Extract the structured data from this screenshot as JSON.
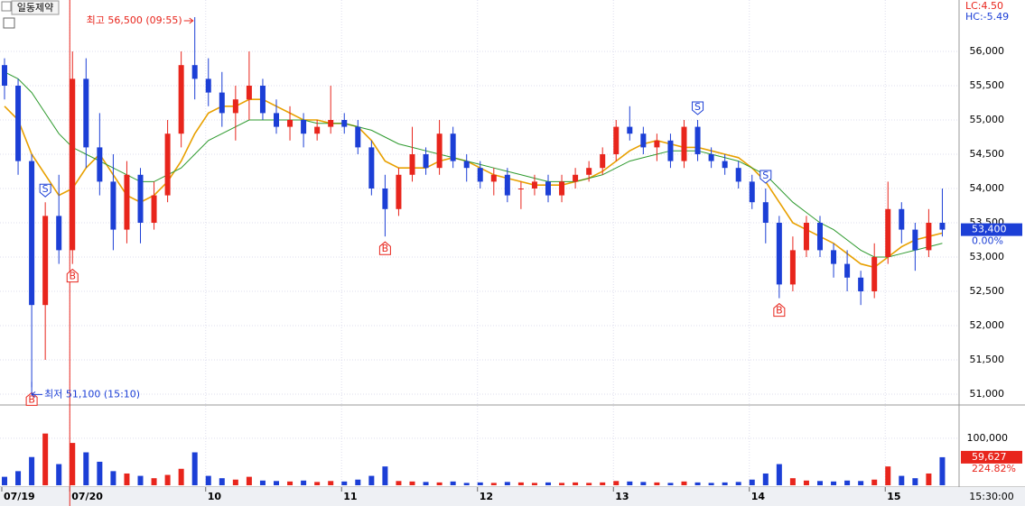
{
  "chart_data": {
    "type": "candlestick",
    "title": "일동제약",
    "lc_label": "LC:4.50",
    "hc_label": "HC:-5.49",
    "high_annotation": "최고 56,500 (09:55)",
    "low_annotation": "최저 51,100 (15:10)",
    "last_price": {
      "value": 53400,
      "label": "53,400"
    },
    "change_label": "0.00%",
    "last_volume": {
      "value": 59627,
      "label": "59,627"
    },
    "volume_ratio_label": "224.82%",
    "end_time": "15:30:00",
    "categories": [
      "07/19",
      null,
      null,
      null,
      null,
      "07/20",
      null,
      null,
      null,
      null,
      null,
      null,
      null,
      null,
      null,
      "10",
      null,
      null,
      null,
      null,
      null,
      null,
      null,
      null,
      null,
      "11",
      null,
      null,
      null,
      null,
      null,
      null,
      null,
      null,
      null,
      "12",
      null,
      null,
      null,
      null,
      null,
      null,
      null,
      null,
      null,
      "13",
      null,
      null,
      null,
      null,
      null,
      null,
      null,
      null,
      null,
      "14",
      null,
      null,
      null,
      null,
      null,
      null,
      null,
      null,
      null,
      "15",
      null,
      null,
      null,
      null
    ],
    "open": [
      55800,
      55500,
      54400,
      52300,
      53600,
      53100,
      55600,
      54600,
      54100,
      53400,
      54200,
      53500,
      53900,
      54800,
      55800,
      55600,
      55400,
      55100,
      55300,
      55500,
      55100,
      54900,
      55000,
      54800,
      54900,
      55000,
      54900,
      54600,
      54000,
      53700,
      54200,
      54500,
      54300,
      54800,
      54400,
      54300,
      54100,
      54200,
      54000,
      54000,
      54100,
      53900,
      54100,
      54200,
      54300,
      54500,
      54900,
      54800,
      54600,
      54700,
      54400,
      54900,
      54500,
      54400,
      54300,
      54100,
      53800,
      53500,
      52600,
      53100,
      53500,
      53100,
      52900,
      52700,
      52500,
      53000,
      53700,
      53400,
      53100,
      53500
    ],
    "high": [
      55900,
      55600,
      54500,
      53800,
      54200,
      56000,
      55900,
      55100,
      54500,
      54400,
      54300,
      54100,
      55000,
      56000,
      56500,
      55900,
      55700,
      55500,
      56000,
      55600,
      55300,
      55200,
      55100,
      55000,
      55500,
      55100,
      55000,
      54700,
      54200,
      54300,
      54900,
      54600,
      55000,
      54900,
      54500,
      54400,
      54300,
      54300,
      54100,
      54200,
      54200,
      54200,
      54300,
      54400,
      54600,
      55000,
      55200,
      54900,
      54800,
      54800,
      55000,
      55000,
      54600,
      54500,
      54400,
      54200,
      54000,
      53600,
      53300,
      53600,
      53600,
      53200,
      53100,
      52800,
      53200,
      54100,
      53800,
      53500,
      53700,
      54000
    ],
    "low": [
      55300,
      54200,
      51100,
      51500,
      52900,
      52900,
      54300,
      53900,
      53100,
      53200,
      53200,
      53400,
      53800,
      54600,
      55300,
      55200,
      54900,
      54700,
      55000,
      55000,
      54800,
      54700,
      54600,
      54700,
      54800,
      54800,
      54500,
      53900,
      53300,
      53600,
      54100,
      54200,
      54200,
      54300,
      54100,
      54000,
      53900,
      53800,
      53700,
      53900,
      53800,
      53800,
      54000,
      54100,
      54200,
      54400,
      54700,
      54500,
      54400,
      54300,
      54300,
      54400,
      54300,
      54200,
      54000,
      53700,
      53200,
      52400,
      52500,
      53000,
      53000,
      52700,
      52500,
      52300,
      52400,
      52900,
      53200,
      52800,
      53000,
      53300
    ],
    "close": [
      55500,
      54400,
      52300,
      53600,
      53100,
      55600,
      54600,
      54100,
      53400,
      54200,
      53500,
      53900,
      54800,
      55800,
      55600,
      55400,
      55100,
      55300,
      55500,
      55100,
      54900,
      55000,
      54800,
      54900,
      55000,
      54900,
      54600,
      54000,
      53700,
      54200,
      54500,
      54300,
      54800,
      54400,
      54300,
      54100,
      54200,
      53900,
      54000,
      54100,
      53900,
      54100,
      54200,
      54300,
      54500,
      54900,
      54800,
      54600,
      54700,
      54400,
      54900,
      54500,
      54400,
      54300,
      54100,
      53800,
      53500,
      52600,
      53100,
      53500,
      53100,
      52900,
      52700,
      52500,
      53000,
      53700,
      53400,
      53100,
      53500,
      53400
    ],
    "volume": [
      18000,
      30000,
      60000,
      110000,
      45000,
      90000,
      70000,
      50000,
      30000,
      25000,
      20000,
      15000,
      22000,
      35000,
      70000,
      20000,
      15000,
      12000,
      18000,
      10000,
      9000,
      8000,
      10000,
      7000,
      9000,
      8000,
      12000,
      20000,
      40000,
      9000,
      8000,
      7000,
      6000,
      8000,
      5000,
      6000,
      5000,
      7000,
      6000,
      5000,
      6000,
      5000,
      6000,
      5000,
      6000,
      9000,
      8000,
      7000,
      6000,
      5000,
      8000,
      6000,
      5000,
      6000,
      7000,
      12000,
      25000,
      45000,
      15000,
      10000,
      9000,
      8000,
      10000,
      9000,
      12000,
      40000,
      20000,
      15000,
      25000,
      59627
    ],
    "signals": [
      null,
      null,
      "B",
      "S",
      null,
      "B",
      null,
      null,
      null,
      null,
      null,
      null,
      null,
      null,
      null,
      null,
      null,
      null,
      null,
      null,
      null,
      null,
      null,
      null,
      null,
      null,
      null,
      null,
      "B",
      null,
      null,
      null,
      null,
      null,
      null,
      null,
      null,
      null,
      null,
      null,
      null,
      null,
      null,
      null,
      null,
      null,
      null,
      null,
      null,
      null,
      null,
      "S",
      null,
      null,
      null,
      null,
      "S",
      "B",
      null,
      null,
      null,
      null,
      null,
      null,
      null,
      null,
      null,
      null,
      null,
      null
    ],
    "series": [
      {
        "name": "MA1",
        "color": "#e8a000",
        "values": [
          55200,
          55000,
          54500,
          54200,
          53900,
          54000,
          54300,
          54500,
          54200,
          53900,
          53800,
          53900,
          54100,
          54400,
          54800,
          55100,
          55200,
          55200,
          55300,
          55300,
          55200,
          55100,
          55000,
          55000,
          54950,
          54950,
          54900,
          54700,
          54400,
          54300,
          54300,
          54300,
          54400,
          54450,
          54400,
          54300,
          54200,
          54150,
          54100,
          54050,
          54050,
          54050,
          54100,
          54150,
          54250,
          54400,
          54550,
          54650,
          54700,
          54650,
          54600,
          54600,
          54550,
          54500,
          54450,
          54300,
          54100,
          53800,
          53500,
          53400,
          53300,
          53200,
          53050,
          52900,
          52850,
          53000,
          53150,
          53250,
          53300,
          53350
        ]
      },
      {
        "name": "MA2",
        "color": "#2e9a2e",
        "values": [
          55700,
          55600,
          55400,
          55100,
          54800,
          54600,
          54500,
          54400,
          54300,
          54200,
          54100,
          54100,
          54200,
          54300,
          54500,
          54700,
          54800,
          54900,
          55000,
          55000,
          55000,
          55000,
          55000,
          54950,
          54950,
          54950,
          54900,
          54850,
          54750,
          54650,
          54600,
          54550,
          54500,
          54450,
          54400,
          54350,
          54300,
          54250,
          54200,
          54150,
          54100,
          54100,
          54100,
          54150,
          54200,
          54300,
          54400,
          54450,
          54500,
          54550,
          54550,
          54550,
          54500,
          54450,
          54400,
          54300,
          54200,
          54000,
          53800,
          53650,
          53500,
          53400,
          53250,
          53100,
          53000,
          53000,
          53050,
          53100,
          53150,
          53200
        ]
      }
    ],
    "up_color": "#e8251c",
    "down_color": "#1c3fd6",
    "ylim": [
      50855,
      56750
    ],
    "yticks": [
      {
        "value": 51000,
        "label": "51,000"
      },
      {
        "value": 51500,
        "label": "51,500"
      },
      {
        "value": 52000,
        "label": "52,000"
      },
      {
        "value": 52500,
        "label": "52,500"
      },
      {
        "value": 53000,
        "label": "53,000"
      },
      {
        "value": 53500,
        "label": "53,500"
      },
      {
        "value": 54000,
        "label": "54,000"
      },
      {
        "value": 54500,
        "label": "54,500"
      },
      {
        "value": 55000,
        "label": "55,000"
      },
      {
        "value": 55500,
        "label": "55,500"
      },
      {
        "value": 56000,
        "label": "56,000"
      }
    ],
    "vlim": [
      0,
      165000
    ],
    "vticks": [
      {
        "value": 100000,
        "label": "100,000"
      }
    ],
    "grid": true
  }
}
